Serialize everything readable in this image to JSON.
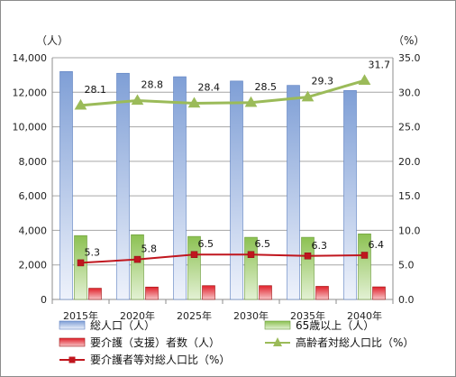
{
  "chart_data": {
    "type": "bar",
    "categories": [
      "2015年",
      "2020年",
      "2025年",
      "2030年",
      "2035年",
      "2040年"
    ],
    "y_left": {
      "unit": "（人）",
      "range": [
        0,
        14000
      ],
      "ticks": [
        "0",
        "2,000",
        "4,000",
        "6,000",
        "8,000",
        "10,000",
        "12,000",
        "14,000"
      ]
    },
    "y_right": {
      "unit": "（%）",
      "range": [
        0,
        35
      ],
      "ticks": [
        "0.0",
        "5.0",
        "10.0",
        "15.0",
        "20.0",
        "25.0",
        "30.0",
        "35.0"
      ]
    },
    "series": [
      {
        "name": "総人口（人）",
        "kind": "bar",
        "axis": "left",
        "color": "#7f9fd6",
        "values": [
          13200,
          13100,
          12900,
          12650,
          12400,
          12100
        ]
      },
      {
        "name": "65歳以上（人）",
        "kind": "bar",
        "axis": "left",
        "color": "#8cc152",
        "values": [
          3700,
          3750,
          3650,
          3600,
          3600,
          3800
        ]
      },
      {
        "name": "要介護（支援）者数（人）",
        "kind": "bar",
        "axis": "left",
        "color": "#e0202a",
        "values": [
          650,
          720,
          800,
          800,
          760,
          730
        ]
      },
      {
        "name": "高齢者対総人口比（%）",
        "kind": "line",
        "axis": "right",
        "color": "#9bbb59",
        "values": [
          28.1,
          28.8,
          28.4,
          28.5,
          29.3,
          31.7
        ],
        "labels": [
          "28.1",
          "28.8",
          "28.4",
          "28.5",
          "29.3",
          "31.7"
        ]
      },
      {
        "name": "要介護者等対総人口比（%）",
        "kind": "line",
        "axis": "right",
        "color": "#c0161e",
        "values": [
          5.3,
          5.8,
          6.5,
          6.5,
          6.3,
          6.4
        ],
        "labels": [
          "5.3",
          "5.8",
          "6.5",
          "6.5",
          "6.3",
          "6.4"
        ]
      }
    ],
    "grid": true,
    "legend": "bottom"
  }
}
